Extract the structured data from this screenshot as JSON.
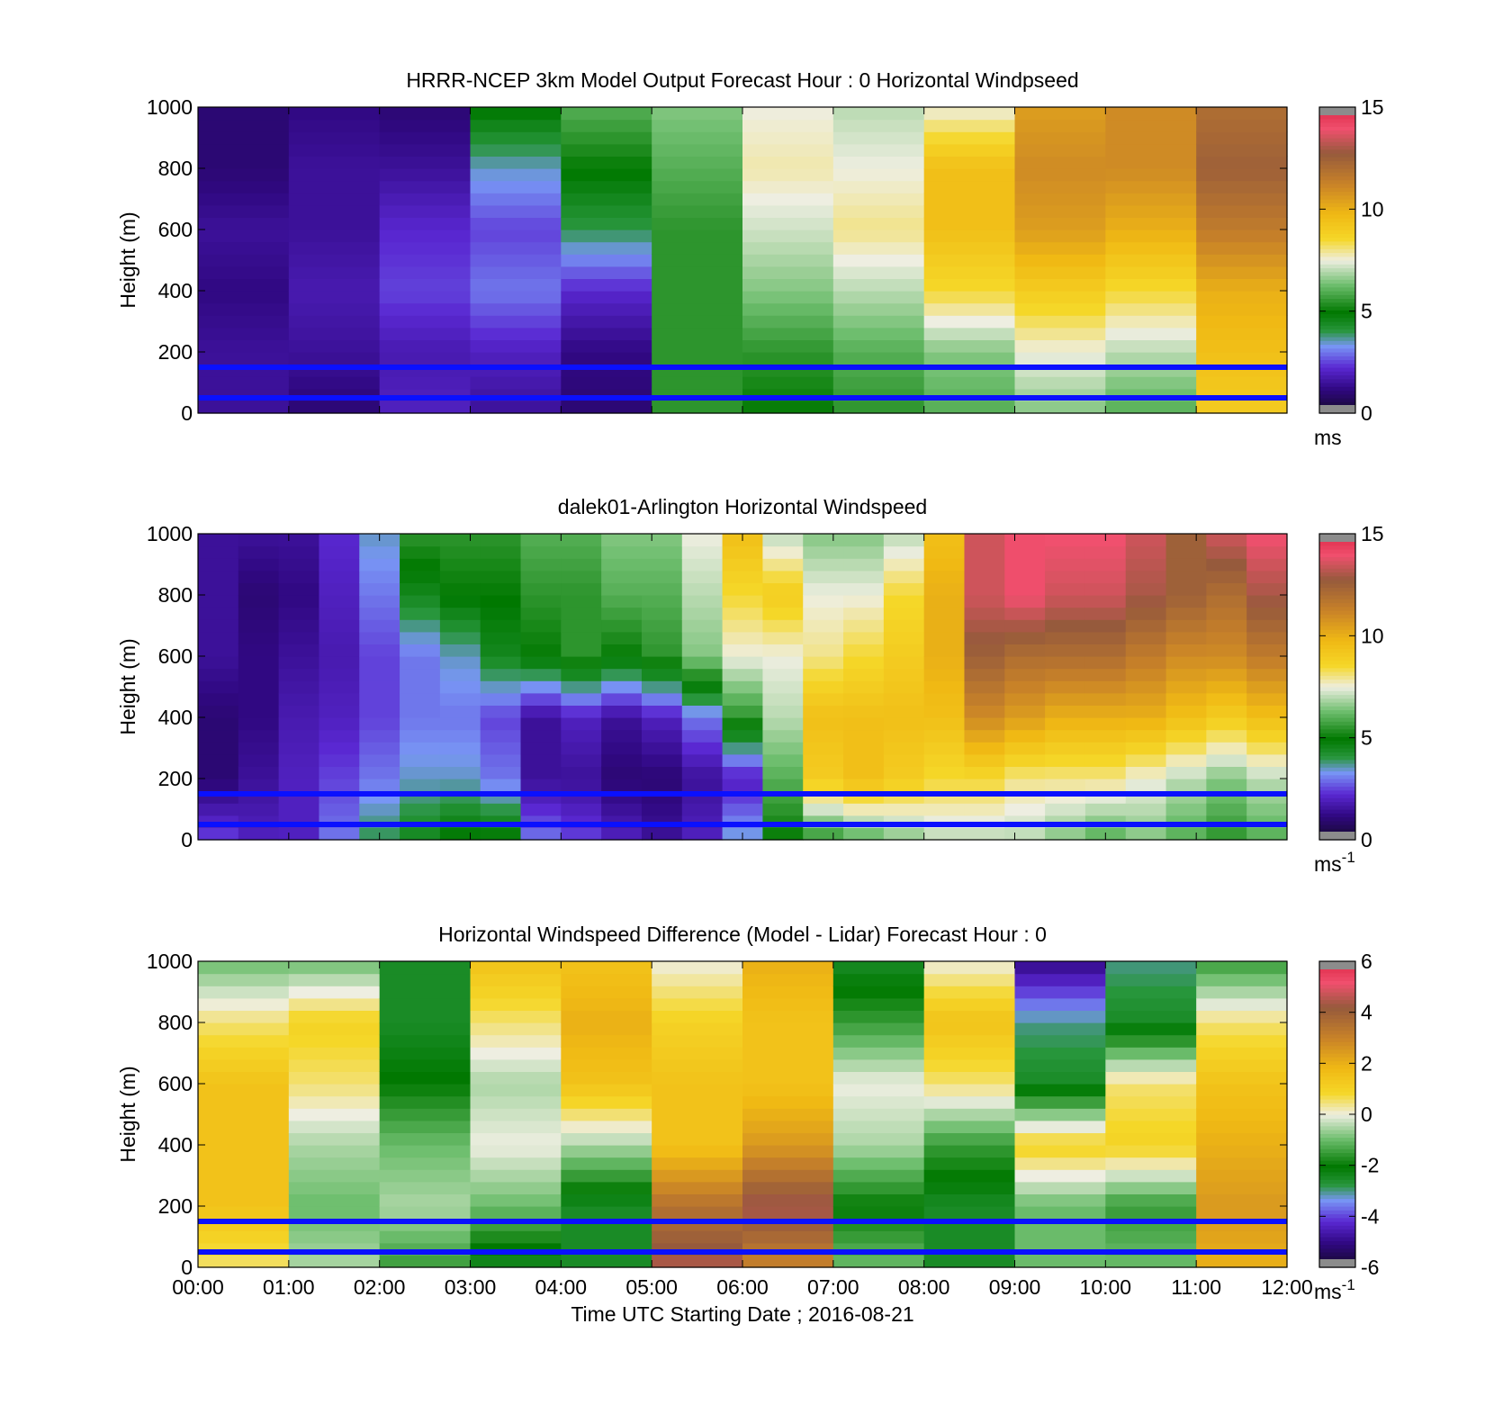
{
  "chart_data": [
    {
      "type": "heatmap",
      "title": "HRRR-NCEP 3km Model Output   Forecast Hour : 0 Horizontal Windpseed",
      "xlabel": "",
      "ylabel": "Height (m)",
      "ylim": [
        0,
        1000
      ],
      "yticks": [
        "0",
        "200",
        "400",
        "600",
        "800",
        "1000"
      ],
      "xticks": [
        "00:00",
        "01:00",
        "02:00",
        "03:00",
        "04:00",
        "05:00",
        "06:00",
        "07:00",
        "08:00",
        "09:00",
        "10:00",
        "11:00",
        "12:00"
      ],
      "show_xtick_labels": false,
      "colorbar": {
        "ticks": [
          "0",
          "5",
          "10",
          "15"
        ],
        "min": 0,
        "max": 15,
        "unit": "ms",
        "unit_sup": ""
      },
      "heights": [
        0,
        200,
        400,
        600,
        800,
        1000
      ],
      "values": [
        [
          1.5,
          1.5,
          1.2,
          1.5,
          1.0,
          1.0
        ],
        [
          1.0,
          1.5,
          1.8,
          1.5,
          1.5,
          1.2
        ],
        [
          2.0,
          1.8,
          2.5,
          2.2,
          1.5,
          1.0
        ],
        [
          1.5,
          2.0,
          3.0,
          2.5,
          3.5,
          5.0
        ],
        [
          1.0,
          1.2,
          2.2,
          4.0,
          5.0,
          6.0
        ],
        [
          5.5,
          5.5,
          5.5,
          5.5,
          6.0,
          6.5
        ],
        [
          5.0,
          5.5,
          6.5,
          7.2,
          7.8,
          7.5
        ],
        [
          5.5,
          6.0,
          7.0,
          8.0,
          7.5,
          7.0
        ],
        [
          6.0,
          6.5,
          8.5,
          9.5,
          9.5,
          7.5
        ],
        [
          6.5,
          7.5,
          9.0,
          10.5,
          11.0,
          10.5
        ],
        [
          6.0,
          7.0,
          8.5,
          10.0,
          11.0,
          11.0
        ],
        [
          9.0,
          9.5,
          10.0,
          11.5,
          12.5,
          12.0
        ]
      ],
      "reference_lines_m": [
        150,
        50
      ]
    },
    {
      "type": "heatmap",
      "title": "dalek01-Arlington  Horizontal Windspeed",
      "xlabel": "",
      "ylabel": "Height (m)",
      "ylim": [
        0,
        1000
      ],
      "yticks": [
        "0",
        "200",
        "400",
        "600",
        "800",
        "1000"
      ],
      "xticks": [
        "00:00",
        "01:00",
        "02:00",
        "03:00",
        "04:00",
        "05:00",
        "06:00",
        "07:00",
        "08:00",
        "09:00",
        "10:00",
        "11:00",
        "12:00"
      ],
      "show_xtick_labels": false,
      "colorbar": {
        "ticks": [
          "0",
          "5",
          "10",
          "15"
        ],
        "min": 0,
        "max": 15,
        "unit": "ms",
        "unit_sup": "-1"
      },
      "heights": [
        0,
        200,
        400,
        600,
        800,
        1000
      ],
      "values": [
        [
          2.5,
          1.0,
          1.0,
          1.5,
          1.5,
          1.5
        ],
        [
          2.0,
          1.5,
          1.2,
          1.2,
          1.0,
          1.5
        ],
        [
          2.0,
          2.0,
          1.8,
          1.5,
          1.2,
          1.5
        ],
        [
          3.0,
          2.5,
          2.0,
          1.8,
          2.0,
          2.2
        ],
        [
          4.0,
          3.0,
          2.5,
          2.5,
          3.0,
          3.5
        ],
        [
          4.5,
          3.5,
          3.0,
          3.0,
          4.5,
          5.5
        ],
        [
          5.0,
          3.5,
          3.0,
          3.5,
          5.0,
          5.5
        ],
        [
          5.0,
          3.0,
          2.5,
          4.5,
          5.0,
          5.5
        ],
        [
          3.0,
          1.5,
          1.5,
          5.0,
          5.5,
          6.0
        ],
        [
          2.5,
          1.5,
          2.0,
          5.5,
          5.5,
          6.0
        ],
        [
          2.0,
          1.0,
          1.5,
          5.0,
          6.0,
          6.5
        ],
        [
          1.5,
          1.0,
          2.0,
          5.5,
          6.0,
          6.5
        ],
        [
          2.0,
          1.5,
          3.0,
          6.5,
          7.0,
          7.5
        ],
        [
          3.5,
          2.0,
          5.5,
          7.5,
          8.5,
          9.5
        ],
        [
          5.0,
          6.0,
          7.0,
          7.5,
          9.0,
          7.0
        ],
        [
          5.5,
          9.0,
          9.5,
          8.0,
          7.5,
          6.5
        ],
        [
          6.0,
          9.5,
          9.5,
          8.5,
          7.5,
          6.5
        ],
        [
          6.5,
          9.0,
          9.5,
          9.0,
          8.5,
          7.0
        ],
        [
          7.0,
          8.5,
          9.5,
          10.0,
          10.0,
          9.5
        ],
        [
          7.0,
          8.5,
          11.0,
          12.5,
          13.5,
          13.5
        ],
        [
          7.0,
          8.0,
          10.5,
          12.0,
          14.0,
          14.0
        ],
        [
          6.5,
          8.0,
          10.0,
          12.0,
          13.5,
          14.0
        ],
        [
          6.0,
          8.0,
          10.0,
          12.0,
          13.5,
          14.0
        ],
        [
          6.5,
          7.5,
          10.0,
          11.5,
          13.0,
          13.5
        ],
        [
          6.0,
          7.0,
          9.5,
          11.0,
          12.5,
          12.5
        ],
        [
          5.5,
          6.5,
          9.0,
          11.0,
          12.0,
          13.5
        ],
        [
          6.0,
          7.0,
          9.5,
          11.5,
          13.0,
          14.0
        ]
      ],
      "reference_lines_m": [
        150,
        50
      ]
    },
    {
      "type": "heatmap",
      "title": "Horizontal Windspeed Difference (Model - Lidar) Forecast Hour : 0",
      "xlabel": "Time UTC  Starting Date ; 2016-08-21",
      "ylabel": "Height (m)",
      "ylim": [
        0,
        1000
      ],
      "yticks": [
        "0",
        "200",
        "400",
        "600",
        "800",
        "1000"
      ],
      "xticks": [
        "00:00",
        "01:00",
        "02:00",
        "03:00",
        "04:00",
        "05:00",
        "06:00",
        "07:00",
        "08:00",
        "09:00",
        "10:00",
        "11:00",
        "12:00"
      ],
      "show_xtick_labels": true,
      "colorbar": {
        "ticks": [
          "-6",
          "-4",
          "-2",
          "0",
          "2",
          "4",
          "6"
        ],
        "min": -6,
        "max": 6,
        "unit": "ms",
        "unit_sup": "-1"
      },
      "heights": [
        0,
        200,
        400,
        600,
        800,
        1000
      ],
      "values": [
        [
          0.5,
          1.5,
          1.5,
          1.5,
          0.5,
          -1.0
        ],
        [
          -0.5,
          -1.0,
          -0.5,
          0.5,
          1.0,
          -1.0
        ],
        [
          -1.5,
          -0.5,
          -1.0,
          -2.0,
          -2.5,
          -2.5
        ],
        [
          -2.5,
          -1.0,
          0.0,
          -0.5,
          0.5,
          1.5
        ],
        [
          -2.5,
          -2.5,
          -0.5,
          1.5,
          2.0,
          1.5
        ],
        [
          4.5,
          3.5,
          1.5,
          1.5,
          1.0,
          0.0
        ],
        [
          3.0,
          4.5,
          2.5,
          1.5,
          1.5,
          2.0
        ],
        [
          -1.0,
          -2.0,
          -0.5,
          0.0,
          -1.5,
          -2.5
        ],
        [
          -2.5,
          -2.5,
          -1.5,
          0.5,
          1.5,
          0.0
        ],
        [
          -1.0,
          -1.0,
          1.0,
          -2.5,
          -3.0,
          -5.0
        ],
        [
          -1.0,
          -1.5,
          1.0,
          0.5,
          -2.5,
          -3.0
        ],
        [
          2.0,
          2.5,
          2.0,
          1.5,
          0.5,
          -1.5
        ]
      ],
      "reference_lines_m": [
        150,
        50
      ]
    }
  ]
}
